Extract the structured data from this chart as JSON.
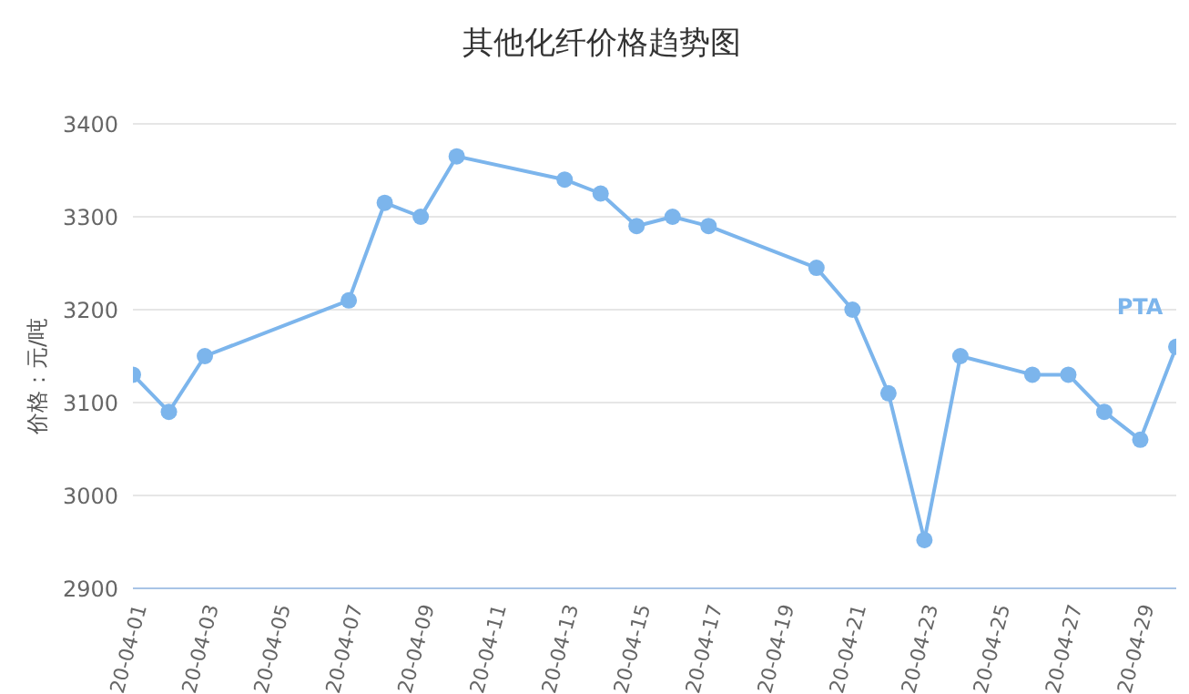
{
  "chart_data": {
    "type": "line",
    "title": "其他化纤价格趋势图",
    "ylabel": "价格：元/吨",
    "categories": [
      "20-04-01",
      null,
      "20-04-03",
      null,
      "20-04-05",
      null,
      "20-04-07",
      null,
      "20-04-09",
      null,
      "20-04-11",
      null,
      "20-04-13",
      null,
      "20-04-15",
      null,
      "20-04-17",
      null,
      "20-04-19",
      null,
      "20-04-21",
      null,
      "20-04-23",
      null,
      "20-04-25",
      null,
      "20-04-27",
      null,
      "20-04-29",
      null
    ],
    "series": [
      {
        "name": "PTA",
        "color": "#7cb5ec",
        "values": [
          3130,
          3090,
          3150,
          null,
          null,
          null,
          3210,
          3315,
          3300,
          3365,
          null,
          null,
          3340,
          3325,
          3290,
          3300,
          3290,
          null,
          null,
          3245,
          3200,
          3110,
          2952,
          3150,
          null,
          3130,
          3130,
          3090,
          3060,
          3160
        ]
      }
    ],
    "ylim": [
      2900,
      3400
    ],
    "yticks": [
      2900,
      3000,
      3100,
      3200,
      3300,
      3400
    ],
    "grid": "y",
    "marker": "circle",
    "line_style": "solid"
  }
}
